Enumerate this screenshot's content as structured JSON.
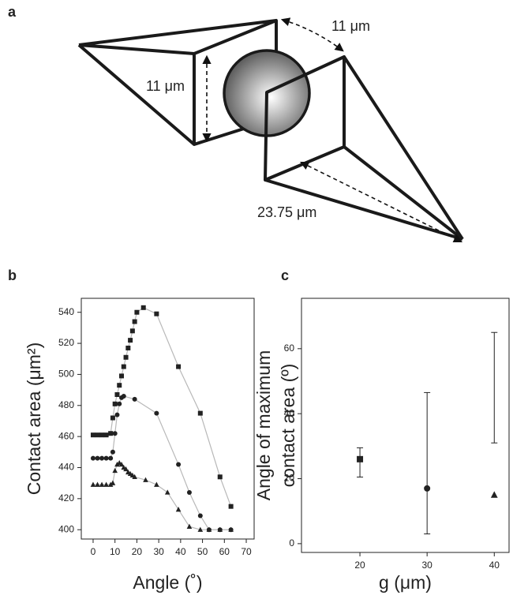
{
  "panel_a": {
    "label": "a",
    "annotations": [
      "11 μm",
      "11 μm",
      "23.75 μm"
    ]
  },
  "chart_data": [
    {
      "panel_label": "b",
      "type": "line",
      "xlabel": "Angle (˚)",
      "ylabel": "Contact area  (μm²)",
      "xlim": [
        -5.4,
        73.6
      ],
      "ylim": [
        394,
        549
      ],
      "xticks": [
        0,
        10,
        20,
        30,
        40,
        50,
        60,
        70
      ],
      "yticks": [
        400,
        420,
        440,
        460,
        480,
        500,
        520,
        540
      ],
      "line_color": "#b8b8b8",
      "series": [
        {
          "marker": "square",
          "color": "#222222",
          "x": [
            0,
            2,
            4,
            6,
            8,
            9,
            10,
            11,
            12,
            13,
            14,
            15,
            16,
            17,
            18,
            19,
            20,
            23,
            29,
            39,
            49,
            58,
            63
          ],
          "values": [
            461,
            461,
            461,
            461,
            462,
            472,
            481,
            487,
            493,
            499,
            505,
            511,
            517,
            522,
            528,
            534,
            540,
            543,
            539,
            505,
            475,
            434,
            415
          ]
        },
        {
          "marker": "circle",
          "color": "#222222",
          "x": [
            0,
            2,
            4,
            6,
            8,
            9,
            10,
            11,
            12,
            13,
            14,
            19,
            29,
            39,
            44,
            49,
            53,
            58,
            63
          ],
          "values": [
            446,
            446,
            446,
            446,
            446,
            450,
            462,
            474,
            481,
            485,
            486,
            484,
            475,
            442,
            424,
            409,
            400,
            400,
            400
          ]
        },
        {
          "marker": "triangle",
          "color": "#222222",
          "x": [
            0,
            2,
            4,
            6,
            8,
            9,
            10,
            11,
            12,
            13,
            14,
            15,
            16,
            17,
            18,
            19,
            24,
            29,
            34,
            39,
            44,
            49,
            53,
            58,
            63
          ],
          "values": [
            429,
            429,
            429,
            429,
            429,
            430,
            438,
            442,
            443,
            442,
            440,
            439,
            437,
            436,
            435,
            434,
            432,
            429,
            424,
            413,
            402,
            400,
            400,
            400,
            400
          ]
        }
      ]
    },
    {
      "panel_label": "c",
      "type": "errorbar",
      "xlabel": "g (μm)",
      "ylabel": [
        "Angle of maximum",
        "contact area (º)"
      ],
      "xlim": [
        11.3,
        42.2
      ],
      "ylim": [
        -2.7,
        75.5
      ],
      "xticks": [
        20,
        30,
        40
      ],
      "yticks": [
        0,
        20,
        40,
        60
      ],
      "color": "#222222",
      "x": [
        20,
        30,
        40
      ],
      "values": [
        26,
        17,
        15
      ],
      "error_low": [
        20.5,
        3,
        31
      ],
      "error_high": [
        29.5,
        46.5,
        65
      ],
      "markers": [
        "square",
        "circle",
        "triangle"
      ]
    }
  ]
}
